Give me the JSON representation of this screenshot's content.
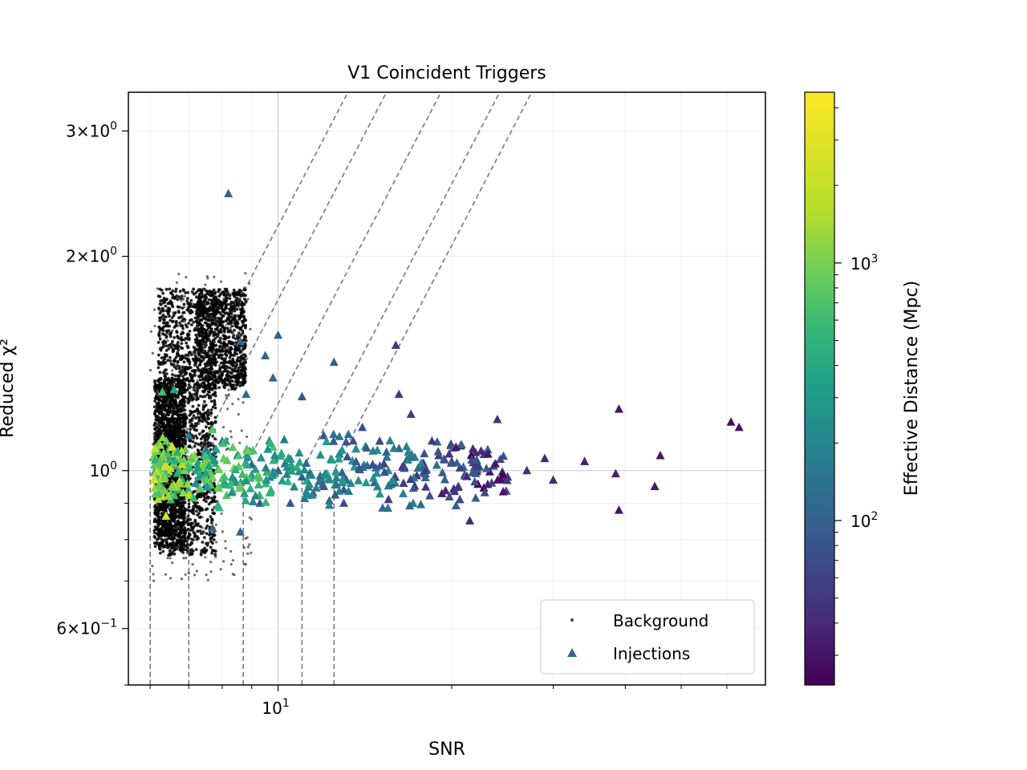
{
  "chart_data": {
    "type": "scatter",
    "title": "V1 Coincident Triggers",
    "xlabel": "SNR",
    "ylabel": "Reduced χ²",
    "xscale": "log",
    "yscale": "log",
    "xlim": [
      5.5,
      70
    ],
    "ylim": [
      0.5,
      3.4
    ],
    "x_tick_labels": [
      {
        "value": 10,
        "label": "10",
        "exp": "1"
      }
    ],
    "y_tick_labels": [
      {
        "value": 3,
        "label": "3×10",
        "exp": "0"
      },
      {
        "value": 2,
        "label": "2×10",
        "exp": "0"
      },
      {
        "value": 1,
        "label": "10",
        "exp": "0"
      },
      {
        "value": 0.6,
        "label": "6×10",
        "exp": "−1"
      }
    ],
    "grid": true,
    "legend": {
      "position": "lower-right",
      "entries": [
        "Background",
        "Injections"
      ]
    },
    "colorbar": {
      "label": "Effective Distance (Mpc)",
      "scale": "log",
      "range": [
        23,
        4600
      ],
      "colormap": "viridis",
      "tick_labels": [
        {
          "value": 100,
          "label": "10",
          "exp": "2"
        },
        {
          "value": 1000,
          "label": "10",
          "exp": "3"
        }
      ]
    },
    "veto_curves": [
      {
        "snr_threshold": 6.0
      },
      {
        "snr_threshold": 7.0
      },
      {
        "snr_threshold": 8.7
      },
      {
        "snr_threshold": 11.0
      },
      {
        "snr_threshold": 12.5
      }
    ],
    "series": [
      {
        "name": "Background",
        "marker": "dot",
        "color": "#000000",
        "regions": [
          {
            "snr_min": 6.1,
            "snr_max": 6.9,
            "chi_min": 0.78,
            "chi_max": 1.35,
            "count": 1400
          },
          {
            "snr_min": 6.2,
            "snr_max": 7.8,
            "chi_min": 0.76,
            "chi_max": 1.8,
            "count": 1600
          },
          {
            "snr_min": 7.2,
            "snr_max": 8.8,
            "chi_min": 1.3,
            "chi_max": 1.8,
            "count": 900
          }
        ]
      },
      {
        "name": "Injections",
        "marker": "triangle",
        "color_by": "effective_distance_mpc",
        "points": [
          [
            8.2,
            2.45,
            110
          ],
          [
            8.6,
            1.52,
            130
          ],
          [
            10.0,
            1.55,
            120
          ],
          [
            9.5,
            1.45,
            125
          ],
          [
            12.5,
            1.42,
            110
          ],
          [
            16.0,
            1.5,
            60
          ],
          [
            9.8,
            1.35,
            130
          ],
          [
            8.8,
            1.28,
            140
          ],
          [
            11.0,
            1.27,
            95
          ],
          [
            16.2,
            1.28,
            55
          ],
          [
            17.0,
            1.2,
            60
          ],
          [
            24.0,
            1.18,
            45
          ],
          [
            39.0,
            1.22,
            30
          ],
          [
            61.0,
            1.17,
            28
          ],
          [
            63.0,
            1.15,
            30
          ],
          [
            14.0,
            1.15,
            80
          ],
          [
            12.0,
            1.12,
            90
          ],
          [
            15.0,
            1.1,
            70
          ],
          [
            19.0,
            1.05,
            55
          ],
          [
            20.0,
            1.03,
            50
          ],
          [
            22.0,
            1.06,
            48
          ],
          [
            29.0,
            1.04,
            40
          ],
          [
            34.0,
            1.03,
            35
          ],
          [
            46.0,
            1.05,
            33
          ],
          [
            38.5,
            0.99,
            38
          ],
          [
            45.0,
            0.95,
            32
          ],
          [
            30.0,
            0.97,
            40
          ],
          [
            25.0,
            0.98,
            42
          ],
          [
            21.5,
            0.85,
            40
          ],
          [
            39.0,
            0.88,
            30
          ],
          [
            27.0,
            1.0,
            45
          ],
          [
            18.0,
            0.99,
            55
          ],
          [
            16.5,
            0.96,
            58
          ],
          [
            13.0,
            0.94,
            85
          ],
          [
            11.5,
            0.93,
            92
          ],
          [
            10.5,
            0.9,
            100
          ],
          [
            9.3,
            0.9,
            110
          ],
          [
            8.6,
            0.82,
            115
          ],
          [
            7.7,
            0.83,
            130
          ],
          [
            13.0,
            0.9,
            80
          ],
          [
            12.0,
            0.95,
            90
          ],
          [
            11.0,
            0.98,
            100
          ],
          [
            10.0,
            1.0,
            110
          ],
          [
            9.0,
            1.02,
            120
          ],
          [
            8.5,
            1.05,
            130
          ],
          [
            8.0,
            1.1,
            140
          ],
          [
            7.5,
            1.07,
            160
          ],
          [
            7.0,
            1.12,
            200
          ],
          [
            6.6,
            1.3,
            500
          ],
          [
            6.3,
            1.29,
            900
          ],
          [
            6.1,
            1.05,
            1500
          ],
          [
            6.2,
            1.0,
            1800
          ],
          [
            6.25,
            0.95,
            1400
          ],
          [
            6.3,
            0.92,
            3500
          ],
          [
            6.5,
            1.08,
            2500
          ],
          [
            6.4,
            1.1,
            1200
          ],
          [
            6.9,
            1.0,
            800
          ],
          [
            7.2,
            0.96,
            300
          ],
          [
            6.7,
            0.94,
            600
          ],
          [
            7.3,
            1.02,
            250
          ]
        ]
      }
    ]
  }
}
